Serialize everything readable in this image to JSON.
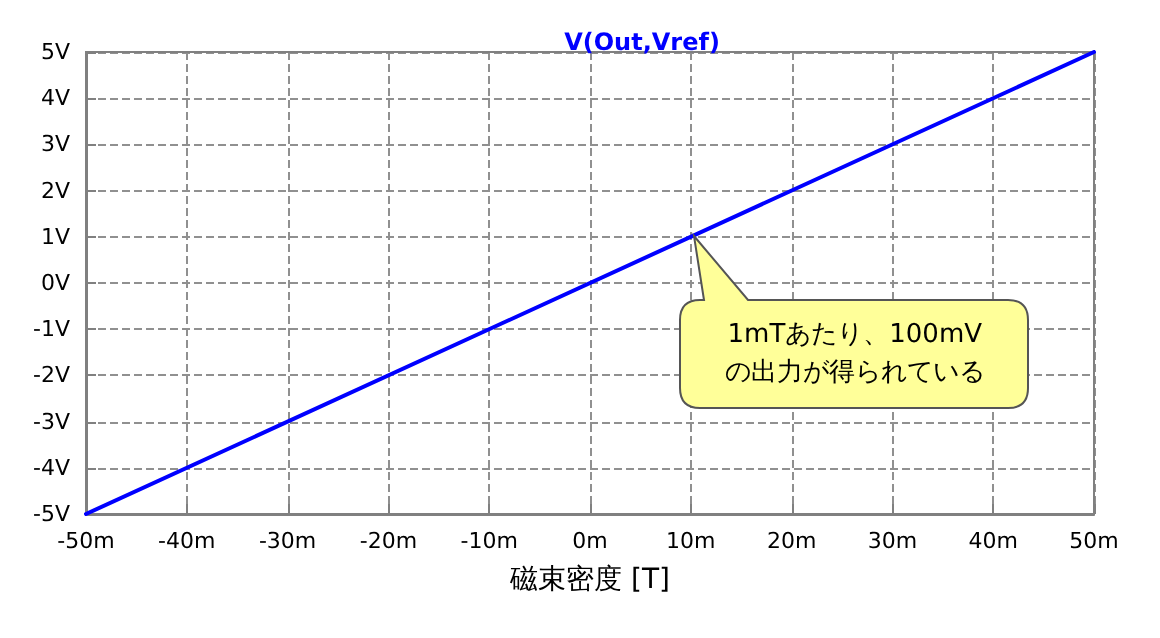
{
  "chart_data": {
    "type": "line",
    "title": "V(Out,Vref)",
    "xlabel": "磁束密度 [T]",
    "x": [
      -50,
      50
    ],
    "series": [
      {
        "color": "#0000ff",
        "values": [
          -5,
          5
        ]
      }
    ],
    "xlim": [
      -50,
      50
    ],
    "xticks": [
      {
        "value": -50,
        "label": "-50m"
      },
      {
        "value": -40,
        "label": "-40m"
      },
      {
        "value": -30,
        "label": "-30m"
      },
      {
        "value": -20,
        "label": "-20m"
      },
      {
        "value": -10,
        "label": "-10m"
      },
      {
        "value": 0,
        "label": "0m"
      },
      {
        "value": 10,
        "label": "10m"
      },
      {
        "value": 20,
        "label": "20m"
      },
      {
        "value": 30,
        "label": "30m"
      },
      {
        "value": 40,
        "label": "40m"
      },
      {
        "value": 50,
        "label": "50m"
      }
    ],
    "ylim": [
      -5,
      5
    ],
    "yticks": [
      {
        "value": -5,
        "label": "-5V"
      },
      {
        "value": -4,
        "label": "-4V"
      },
      {
        "value": -3,
        "label": "-3V"
      },
      {
        "value": -2,
        "label": "-2V"
      },
      {
        "value": -1,
        "label": "-1V"
      },
      {
        "value": 0,
        "label": "0V"
      },
      {
        "value": 1,
        "label": "1V"
      },
      {
        "value": 2,
        "label": "2V"
      },
      {
        "value": 3,
        "label": "3V"
      },
      {
        "value": 4,
        "label": "4V"
      },
      {
        "value": 5,
        "label": "5V"
      }
    ],
    "grid": true,
    "marker": "none",
    "line_style": "solid",
    "annotations": [
      "1mTあたり、100mV\nの出力が得られている"
    ]
  }
}
